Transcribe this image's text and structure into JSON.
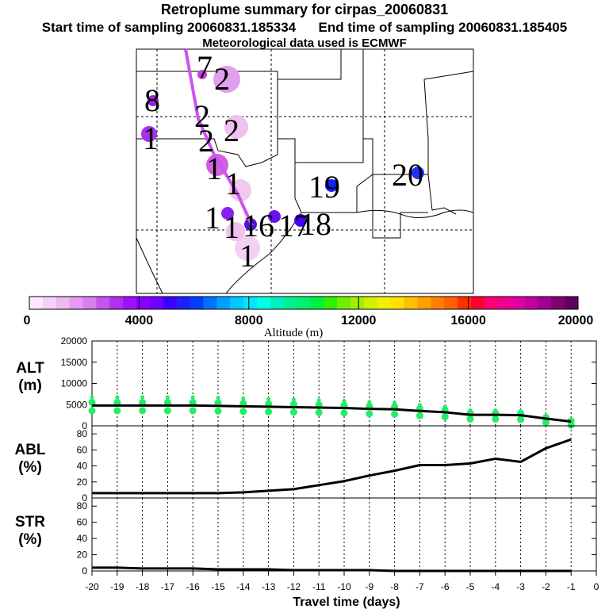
{
  "header": {
    "title": "Retroplume summary for cirpas_20060831",
    "start_label": "Start time of sampling 20060831.185334",
    "end_label": "End time of sampling 20060831.185405",
    "met_label": "Meteorological data used is ECMWF"
  },
  "map": {
    "day_labels": [
      "7",
      "2",
      "8",
      "2",
      "1",
      "2",
      "2",
      "1",
      "1",
      "19",
      "20",
      "1",
      "1",
      "16",
      "17",
      "18",
      "1"
    ],
    "track_color": "#cc55ee"
  },
  "colorbar": {
    "tick_labels": [
      "0",
      "4000",
      "8000",
      "12000",
      "16000",
      "20000"
    ],
    "title": "Altitude (m)",
    "colors": [
      "#ffe8ff",
      "#f7d0f7",
      "#efb8ef",
      "#e699ef",
      "#d97fef",
      "#c655ef",
      "#b030ef",
      "#9f10ff",
      "#8a00ff",
      "#7000ff",
      "#3c00ff",
      "#2020ff",
      "#0040ff",
      "#0070ff",
      "#00a0ff",
      "#00c8ff",
      "#00e6ff",
      "#00ffe6",
      "#00f0c0",
      "#00f090",
      "#00f070",
      "#00f040",
      "#30f000",
      "#70f000",
      "#a0f000",
      "#d0f000",
      "#f0f000",
      "#ffe000",
      "#ffc000",
      "#ffa000",
      "#ff8000",
      "#ff6000",
      "#ff3000",
      "#ff0030",
      "#ff0070",
      "#f00090",
      "#e000a0",
      "#c000a0",
      "#a00090",
      "#800070",
      "#600060"
    ]
  },
  "chart_data": [
    {
      "type": "line",
      "name": "ALT",
      "ylabel": "ALT\n(m)",
      "ylabel_lines": [
        "ALT",
        "(m)"
      ],
      "ylim": [
        0,
        20000
      ],
      "yticks": [
        "0",
        "5000",
        "10000",
        "15000",
        "20000"
      ],
      "x": [
        -20,
        -19,
        -18,
        -17,
        -16,
        -15,
        -14,
        -13,
        -12,
        -11,
        -10,
        -9,
        -8,
        -7,
        -6,
        -5,
        -4,
        -3,
        -2,
        -1
      ],
      "values": [
        4800,
        4800,
        4800,
        4800,
        4800,
        4700,
        4600,
        4500,
        4400,
        4300,
        4200,
        4000,
        3900,
        3500,
        3200,
        2600,
        2600,
        2500,
        1700,
        1000
      ],
      "scatter_color": "#22ee66"
    },
    {
      "type": "line",
      "name": "ABL",
      "ylabel": "ABL\n(%)",
      "ylabel_lines": [
        "ABL",
        "(%)"
      ],
      "ylim": [
        0,
        90
      ],
      "yticks": [
        "0",
        "20",
        "40",
        "60",
        "80"
      ],
      "x": [
        -20,
        -19,
        -18,
        -17,
        -16,
        -15,
        -14,
        -13,
        -12,
        -11,
        -10,
        -9,
        -8,
        -7,
        -6,
        -5,
        -4,
        -3,
        -2,
        -1
      ],
      "values": [
        6,
        6,
        6,
        6,
        6,
        6,
        7,
        9,
        11,
        16,
        21,
        28,
        34,
        41,
        41,
        43,
        49,
        45,
        62,
        73
      ]
    },
    {
      "type": "line",
      "name": "STR",
      "ylabel": "STR\n(%)",
      "ylabel_lines": [
        "STR",
        "(%)"
      ],
      "ylim": [
        0,
        90
      ],
      "yticks": [
        "0",
        "20",
        "40",
        "60",
        "80"
      ],
      "x": [
        -20,
        -19,
        -18,
        -17,
        -16,
        -15,
        -14,
        -13,
        -12,
        -11,
        -10,
        -9,
        -8,
        -7,
        -6,
        -5,
        -4,
        -3,
        -2,
        -1
      ],
      "values": [
        4,
        4,
        3,
        3,
        3,
        2,
        2,
        2,
        1,
        1,
        1,
        1,
        0,
        0,
        0,
        0,
        0,
        0,
        0,
        0
      ]
    }
  ],
  "xaxis": {
    "ticks": [
      "-20",
      "-19",
      "-18",
      "-17",
      "-16",
      "-15",
      "-14",
      "-13",
      "-12",
      "-11",
      "-10",
      "-9",
      "-8",
      "-7",
      "-6",
      "-5",
      "-4",
      "-3",
      "-2",
      "-1",
      "0"
    ],
    "title": "Travel time (days)",
    "xlim": [
      -20,
      0
    ]
  }
}
